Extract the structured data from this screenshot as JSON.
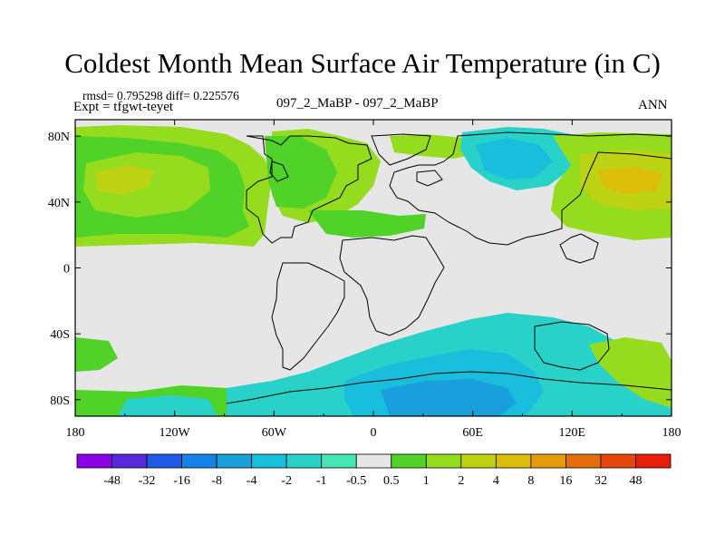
{
  "title": "Coldest Month Mean Surface Air Temperature (in C)",
  "stats": "rmsd= 0.795298 diff= 0.225576",
  "experiment": "Expt = tfgwt-teyet",
  "comparison": "097_2_MaBP - 097_2_MaBP",
  "season": "ANN",
  "map": {
    "lon_ticks": [
      "180",
      "120W",
      "60W",
      "0",
      "60E",
      "120E",
      "180"
    ],
    "lat_ticks": [
      "80N",
      "40N",
      "0",
      "40S",
      "80S"
    ]
  },
  "legend": {
    "labels": [
      "-48",
      "-32",
      "-16",
      "-8",
      "-4",
      "-2",
      "-1",
      "-0.5",
      "0.5",
      "1",
      "2",
      "4",
      "8",
      "16",
      "32",
      "48"
    ],
    "colors": [
      "#8c00e6",
      "#5a28dc",
      "#1e5ae6",
      "#1482e6",
      "#19a0dc",
      "#19bedc",
      "#28d2c8",
      "#46e6b4",
      "#e6e6e6",
      "#50d228",
      "#96dc1e",
      "#bed214",
      "#dcbe0a",
      "#e69b0a",
      "#e66e0a",
      "#e6460a",
      "#e61e0a"
    ]
  },
  "colors": {
    "bg_field": "#e6e6e6",
    "outline": "#000000"
  }
}
